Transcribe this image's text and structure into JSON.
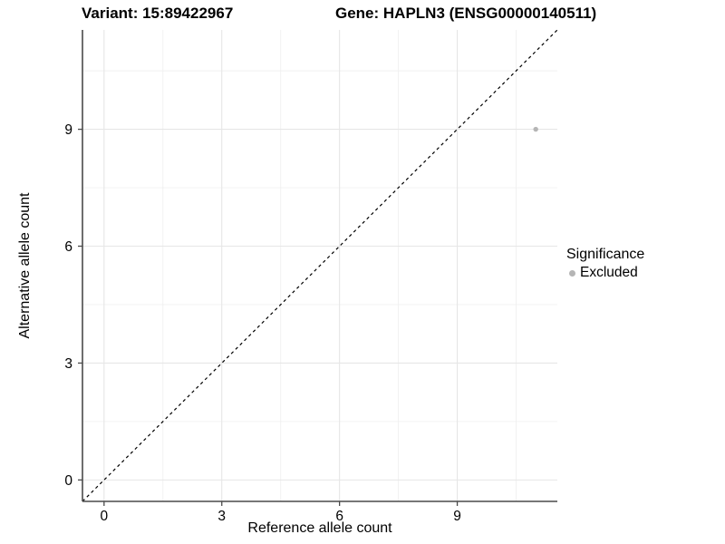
{
  "header": {
    "variant_label": "Variant: 15:89422967",
    "gene_label": "Gene: HAPLN3 (ENSG00000140511)"
  },
  "legend": {
    "title": "Significance",
    "items": [
      {
        "label": "Excluded",
        "color": "#b5b5b5"
      }
    ]
  },
  "colors": {
    "point": "#b5b5b5",
    "grid_major": "#e6e6e6",
    "grid_minor": "#f0f0f0",
    "axis_line": "#4a4a4a",
    "tick_text": "#000000",
    "identity_line": "#000000"
  },
  "chart_data": {
    "type": "scatter",
    "title": "Variant: 15:89422967   Gene: HAPLN3 (ENSG00000140511)",
    "xlabel": "Reference allele count",
    "ylabel": "Alternative allele count",
    "xlim": [
      -0.55,
      11.55
    ],
    "ylim": [
      -0.55,
      11.55
    ],
    "x_ticks": [
      0,
      3,
      6,
      9
    ],
    "y_ticks": [
      0,
      3,
      6,
      9
    ],
    "x_minor_breaks": [
      1.5,
      4.5,
      7.5,
      10.5
    ],
    "y_minor_breaks": [
      1.5,
      4.5,
      7.5,
      10.5
    ],
    "grid": true,
    "legend_position": "right",
    "series": [
      {
        "name": "Excluded",
        "points": [
          {
            "x": 11,
            "y": 9
          }
        ]
      }
    ],
    "reference_line": {
      "description": "identity line y = x",
      "slope": 1,
      "intercept": 0,
      "style": "dashed"
    }
  }
}
